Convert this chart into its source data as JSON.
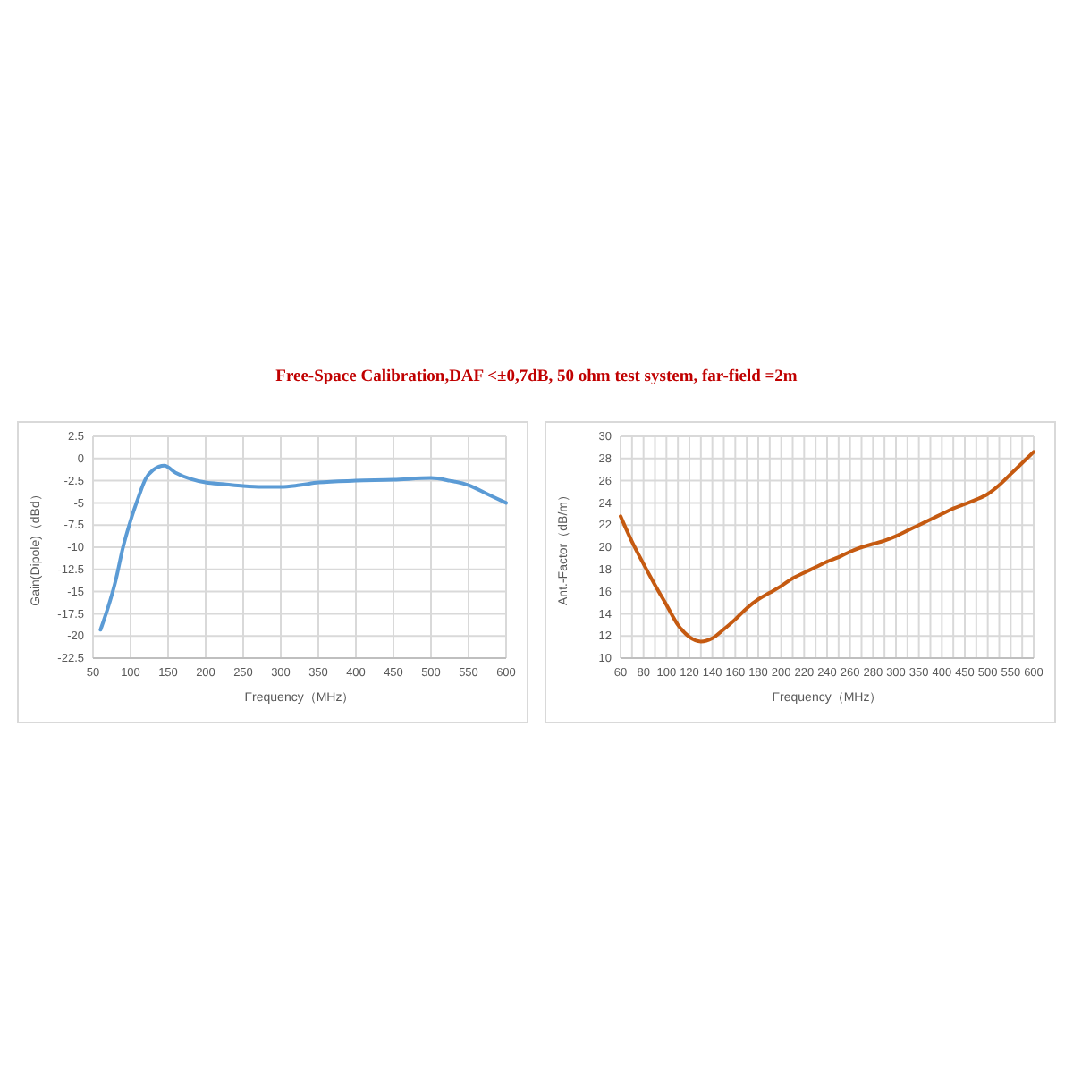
{
  "chart_data": [
    {
      "type": "line",
      "title": "Free-Space Calibration,DAF <±0,7dB,  50 ohm  test system,  far-field =2m",
      "xlabel": "Frequency（MHz）",
      "ylabel": "Gain(Dipole)（dBd）",
      "x": [
        60,
        70,
        80,
        90,
        100,
        110,
        120,
        130,
        145,
        160,
        180,
        200,
        225,
        250,
        275,
        300,
        325,
        350,
        400,
        450,
        500,
        525,
        550,
        575,
        600
      ],
      "series": [
        {
          "color": "#5b9bd5",
          "values": [
            -19.3,
            -16.8,
            -13.8,
            -10,
            -7,
            -4.5,
            -2.3,
            -1.3,
            -0.8,
            -1.6,
            -2.3,
            -2.7,
            -2.9,
            -3.1,
            -3.2,
            -3.2,
            -3.0,
            -2.7,
            -2.5,
            -2.4,
            -2.2,
            -2.5,
            -3,
            -4,
            -5
          ]
        }
      ],
      "xlim": [
        50,
        600
      ],
      "xticks": [
        50,
        100,
        150,
        200,
        250,
        300,
        350,
        400,
        450,
        500,
        550,
        600
      ],
      "ylim": [
        -22.5,
        2.5
      ],
      "yticks": [
        -22.5,
        -20,
        -17.5,
        -15,
        -12.5,
        -10,
        -7.5,
        -5,
        -2.5,
        0,
        2.5
      ],
      "grid": true
    },
    {
      "type": "line",
      "xlabel": "Frequency（MHz）",
      "ylabel": "Ant.-Factor（dB/m）",
      "categories": [
        "60",
        null,
        "80",
        null,
        "100",
        null,
        "120",
        null,
        "140",
        null,
        "160",
        null,
        "180",
        null,
        "200",
        null,
        "220",
        null,
        "240",
        null,
        "260",
        null,
        "280",
        null,
        "300",
        null,
        "350",
        null,
        "400",
        null,
        "450",
        null,
        "500",
        null,
        "550",
        null,
        "600"
      ],
      "series": [
        {
          "color": "#c55a11",
          "values": [
            22.8,
            20.5,
            18.5,
            16.6,
            14.8,
            13.0,
            11.9,
            11.5,
            11.8,
            12.6,
            13.5,
            14.5,
            15.3,
            15.9,
            16.5,
            17.2,
            17.7,
            18.2,
            18.7,
            19.1,
            19.6,
            20.0,
            20.3,
            20.6,
            21.0,
            21.5,
            22.0,
            22.5,
            23.0,
            23.5,
            23.9,
            24.3,
            24.8,
            25.6,
            26.6,
            27.6,
            28.6
          ]
        }
      ],
      "ylim": [
        10,
        30
      ],
      "yticks": [
        10,
        12,
        14,
        16,
        18,
        20,
        22,
        24,
        26,
        28,
        30
      ],
      "grid": true
    }
  ]
}
